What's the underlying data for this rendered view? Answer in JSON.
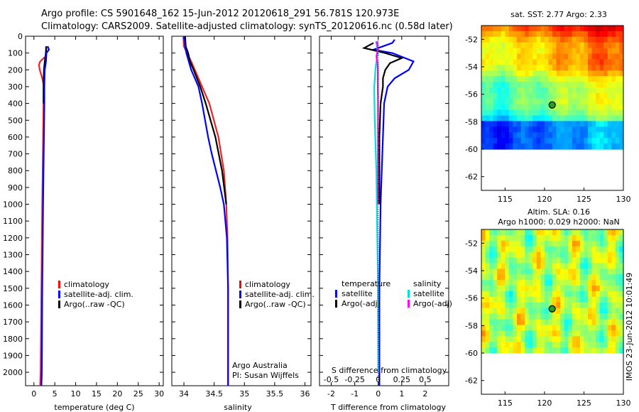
{
  "title": {
    "line1": "Argo profile: CS 5901648_162 15-Jun-2012 20120618_291 56.781S 120.973E",
    "line2": "Climatology: CARS2009. Satellite-adjusted climatology: synTS_20120616.nc (0.58d later)"
  },
  "chart_data": [
    {
      "type": "line",
      "panel": "temperature",
      "xlabel": "temperature (deg C)",
      "ylabel": "",
      "xlim": [
        -2,
        31
      ],
      "ylim": [
        0,
        2080
      ],
      "y_inverted": true,
      "xticks": [
        0,
        5,
        10,
        15,
        20,
        25,
        30
      ],
      "yticks": [
        0,
        100,
        200,
        300,
        400,
        500,
        600,
        700,
        800,
        900,
        1000,
        1100,
        1200,
        1300,
        1400,
        1500,
        1600,
        1700,
        1800,
        1900,
        2000
      ],
      "legend": {
        "position": "lower-middle",
        "entries": [
          {
            "label": "climatology",
            "color": "#ff0000"
          },
          {
            "label": "satellite-adj. clim.",
            "color": "#0000ff"
          },
          {
            "label": "Argo(..raw -QC)",
            "color": "#000000"
          }
        ]
      },
      "series": [
        {
          "name": "climatology",
          "color": "#ee2222",
          "depth": [
            60,
            120,
            150,
            170,
            200,
            250,
            300,
            400,
            600,
            1000,
            1500,
            2000,
            2080
          ],
          "values": [
            2.9,
            2.8,
            1.5,
            1.2,
            1.4,
            2.0,
            2.4,
            2.3,
            2.2,
            2.0,
            1.8,
            1.6,
            1.5
          ]
        },
        {
          "name": "Argo(..raw -QC)",
          "color": "#000000",
          "depth": [
            60,
            100,
            150,
            200,
            300,
            400
          ],
          "values": [
            3.0,
            2.9,
            2.6,
            2.4,
            2.3,
            2.3
          ]
        },
        {
          "name": "satellite-adj. clim.",
          "color": "#0000ff",
          "depth": [
            60,
            80,
            100,
            150,
            200,
            300,
            400,
            600,
            1000,
            1500,
            2000,
            2080
          ],
          "values": [
            3.3,
            3.6,
            3.0,
            2.9,
            2.6,
            2.5,
            2.5,
            2.4,
            2.2,
            2.0,
            1.9,
            1.8
          ]
        }
      ]
    },
    {
      "type": "line",
      "panel": "salinity",
      "xlabel": "salinity",
      "xlim": [
        33.8,
        36.1
      ],
      "ylim": [
        0,
        2080
      ],
      "y_inverted": true,
      "xticks": [
        34,
        34.5,
        35,
        35.5,
        36
      ],
      "legend": {
        "position": "lower-right",
        "entries": [
          {
            "label": "climatology",
            "color": "#ff0000"
          },
          {
            "label": "satellite-adj. clim.",
            "color": "#0000ff"
          },
          {
            "label": "Argo(..raw -QC)",
            "color": "#000000"
          }
        ]
      },
      "annotations": [
        "Argo Australia",
        "PI: Susan Wijffels"
      ],
      "series": [
        {
          "name": "climatology",
          "color": "#ee2222",
          "depth": [
            0,
            60,
            100,
            150,
            200,
            300,
            400,
            600,
            800,
            1000,
            1200,
            1500,
            1800,
            2000,
            2080
          ],
          "values": [
            33.99,
            34.0,
            34.05,
            34.12,
            34.18,
            34.3,
            34.42,
            34.57,
            34.66,
            34.7,
            34.72,
            34.73,
            34.73,
            34.73,
            34.73
          ]
        },
        {
          "name": "Argo(..raw -QC)",
          "color": "#000000",
          "depth": [
            0,
            60,
            100,
            150,
            200,
            300,
            400,
            600,
            800,
            1000
          ],
          "values": [
            34.02,
            34.03,
            34.07,
            34.1,
            34.16,
            34.27,
            34.36,
            34.52,
            34.63,
            34.7
          ]
        },
        {
          "name": "satellite-adj. clim.",
          "color": "#0000ff",
          "depth": [
            0,
            60,
            100,
            150,
            200,
            300,
            400,
            500,
            600,
            700,
            800,
            900,
            1000,
            1200,
            1500,
            1800,
            2000,
            2080
          ],
          "values": [
            34.0,
            34.02,
            34.04,
            34.08,
            34.12,
            34.24,
            34.3,
            34.35,
            34.4,
            34.46,
            34.53,
            34.6,
            34.66,
            34.71,
            34.73,
            34.73,
            34.73,
            34.73
          ]
        }
      ]
    },
    {
      "type": "line",
      "panel": "difference",
      "xlabel": "T difference from climatology",
      "xlabel2": "S difference from climatology",
      "xlim": [
        -2.5,
        3.0
      ],
      "xlim_S": [
        -0.625,
        0.75
      ],
      "ylim": [
        0,
        2080
      ],
      "y_inverted": true,
      "xticks": [
        -2,
        -1,
        0,
        1,
        2
      ],
      "xticks_S": [
        -0.5,
        -0.25,
        0,
        0.25,
        0.5
      ],
      "xticklabels_S": [
        "-0.5",
        "-0.25",
        "0",
        "0.25",
        "0.5"
      ],
      "legend": {
        "position": "lower-middle",
        "temperature_header": "temperature",
        "salinity_header": "salinity",
        "entries": [
          {
            "label": "satellite",
            "color": "#0000ff",
            "group": "temperature"
          },
          {
            "label": "Argo(-adj)",
            "color": "#000000",
            "group": "temperature"
          },
          {
            "label": "satellite",
            "color": "#00dddd",
            "group": "salinity"
          },
          {
            "label": "Argo(-adj)",
            "color": "#ff00ff",
            "group": "salinity"
          }
        ]
      },
      "series": [
        {
          "name": "T satellite",
          "color": "#0000ff",
          "depth": [
            20,
            40,
            60,
            80,
            100,
            150,
            200,
            250,
            300,
            400,
            600,
            1000,
            1500,
            2000,
            2080
          ],
          "values": [
            0.7,
            0.6,
            0.2,
            -0.2,
            0.6,
            1.5,
            1.3,
            0.7,
            0.4,
            0.25,
            0.2,
            0.1,
            0.05,
            0.05,
            0.05
          ]
        },
        {
          "name": "T Argo(-adj)",
          "color": "#000000",
          "depth": [
            40,
            70,
            100,
            130,
            160,
            200,
            250,
            300,
            400,
            600,
            800,
            1000
          ],
          "values": [
            -0.2,
            -0.6,
            0.3,
            1.0,
            0.5,
            0.3,
            0.2,
            0.2,
            0.1,
            0.05,
            0.05,
            0.05
          ]
        },
        {
          "name": "S satellite",
          "color": "#00dddd",
          "depth": [
            30,
            60,
            100,
            150,
            200,
            300,
            500,
            800,
            1100,
            1400,
            1700,
            2000
          ],
          "values": [
            -0.1,
            -0.05,
            -0.02,
            -0.08,
            -0.12,
            -0.17,
            -0.15,
            -0.08,
            -0.05,
            -0.02,
            -0.01,
            0.0
          ]
        },
        {
          "name": "S Argo(-adj)",
          "color": "#ff00ff",
          "depth": [
            30,
            80,
            120,
            160,
            200,
            300,
            400,
            600,
            800,
            1000
          ],
          "values": [
            -0.05,
            -0.02,
            -0.08,
            -0.03,
            -0.02,
            -0.02,
            -0.01,
            -0.01,
            -0.01,
            -0.01
          ]
        }
      ]
    },
    {
      "type": "heatmap",
      "panel": "sst-map",
      "title": "sat. SST: 2.77 Argo: 2.33",
      "xlim": [
        112,
        130
      ],
      "ylim": [
        -63,
        -51
      ],
      "xticks": [
        115,
        120,
        125,
        130
      ],
      "yticks": [
        -52,
        -54,
        -56,
        -58,
        -60,
        -62
      ],
      "marker": {
        "lon": 120.973,
        "lat": -56.781
      },
      "data_extent_lat": [
        -60,
        -51
      ]
    },
    {
      "type": "heatmap",
      "panel": "sla-map",
      "title_line1": "Altim. SLA: 0.16",
      "title_line2": "Argo h1000: 0.029 h2000: NaN",
      "xlim": [
        112,
        130
      ],
      "ylim": [
        -63,
        -51
      ],
      "xticks": [
        115,
        120,
        125,
        130
      ],
      "yticks": [
        -52,
        -54,
        -56,
        -58,
        -60,
        -62
      ],
      "marker": {
        "lon": 120.973,
        "lat": -56.781
      },
      "data_extent_lat": [
        -60,
        -51
      ]
    }
  ],
  "stamp": "IMOS 23-Jun-2012 10:01:49"
}
